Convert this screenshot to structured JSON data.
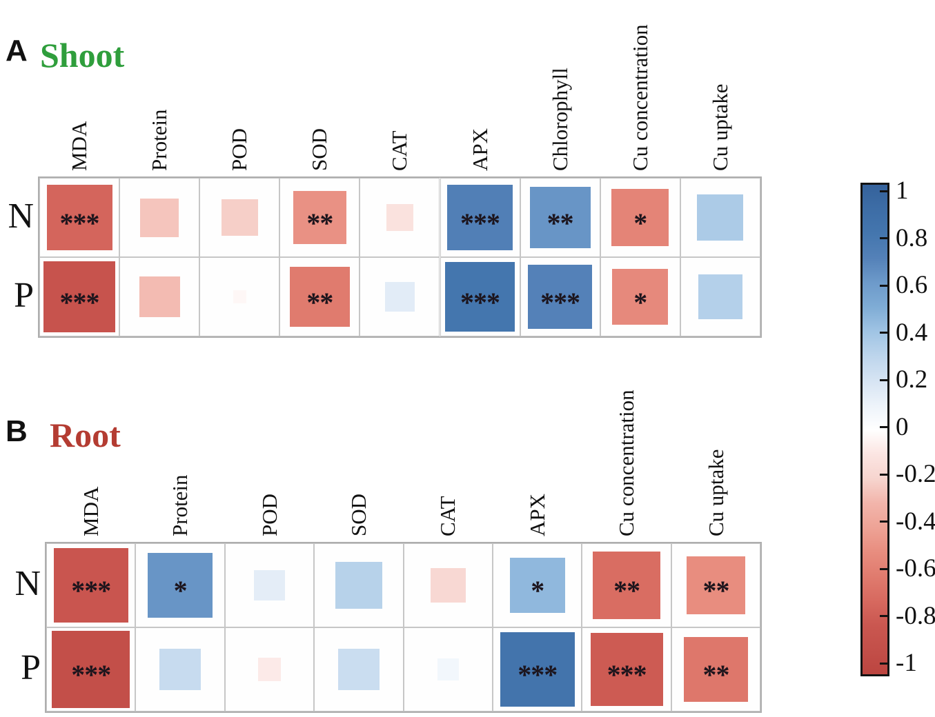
{
  "figure": {
    "type": "correlation-heatmap-figure",
    "panels": [
      {
        "letter": "A",
        "title": "Shoot",
        "title_color": "#2f9e3c"
      },
      {
        "letter": "B",
        "title": "Root",
        "title_color": "#b43c32"
      }
    ]
  },
  "chart_data": [
    {
      "type": "heatmap",
      "panel": "A",
      "title": "Shoot",
      "rows": [
        "N",
        "P"
      ],
      "columns": [
        "MDA",
        "Protein",
        "POD",
        "SOD",
        "CAT",
        "APX",
        "Chlorophyll",
        "Cu concentration",
        "Cu uptake"
      ],
      "series": [
        {
          "name": "N",
          "values": [
            -0.72,
            -0.25,
            -0.22,
            -0.48,
            -0.12,
            0.72,
            0.62,
            -0.55,
            0.36
          ],
          "significance": [
            "***",
            "",
            "",
            "**",
            "",
            "***",
            "**",
            "*",
            ""
          ]
        },
        {
          "name": "P",
          "values": [
            -0.85,
            -0.28,
            -0.03,
            -0.6,
            0.15,
            0.8,
            0.7,
            -0.52,
            0.33
          ],
          "significance": [
            "***",
            "",
            "",
            "**",
            "",
            "***",
            "***",
            "*",
            ""
          ]
        }
      ],
      "value_range": [
        -1,
        1
      ],
      "cell_shape": "square-size-proportional-to-abs-r",
      "legend_position": "shared colorbar right"
    },
    {
      "type": "heatmap",
      "panel": "B",
      "title": "Root",
      "rows": [
        "N",
        "P"
      ],
      "columns": [
        "MDA",
        "Protein",
        "POD",
        "SOD",
        "CAT",
        "APX",
        "Cu concentration",
        "Cu uptake"
      ],
      "series": [
        {
          "name": "N",
          "values": [
            -0.82,
            0.62,
            0.14,
            0.32,
            -0.18,
            0.45,
            -0.68,
            -0.5
          ],
          "significance": [
            "***",
            "*",
            "",
            "",
            "",
            "*",
            "**",
            "**"
          ]
        },
        {
          "name": "P",
          "values": [
            -0.9,
            0.26,
            -0.08,
            0.25,
            0.07,
            0.82,
            -0.78,
            -0.62
          ],
          "significance": [
            "***",
            "",
            "",
            "",
            "",
            "***",
            "***",
            "**"
          ]
        }
      ],
      "value_range": [
        -1,
        1
      ],
      "cell_shape": "square-size-proportional-to-abs-r",
      "legend_position": "shared colorbar right"
    }
  ],
  "colorbar": {
    "orientation": "vertical",
    "tick_labels": [
      "1",
      "0.8",
      "0.6",
      "0.4",
      "0.2",
      "0",
      "-0.2",
      "-0.4",
      "-0.6",
      "-0.8",
      "-1"
    ],
    "max_value": 1,
    "min_value": -1,
    "positive_end_color": "#35629b",
    "mid_color": "#ffffff",
    "negative_end_color": "#bc4540"
  }
}
